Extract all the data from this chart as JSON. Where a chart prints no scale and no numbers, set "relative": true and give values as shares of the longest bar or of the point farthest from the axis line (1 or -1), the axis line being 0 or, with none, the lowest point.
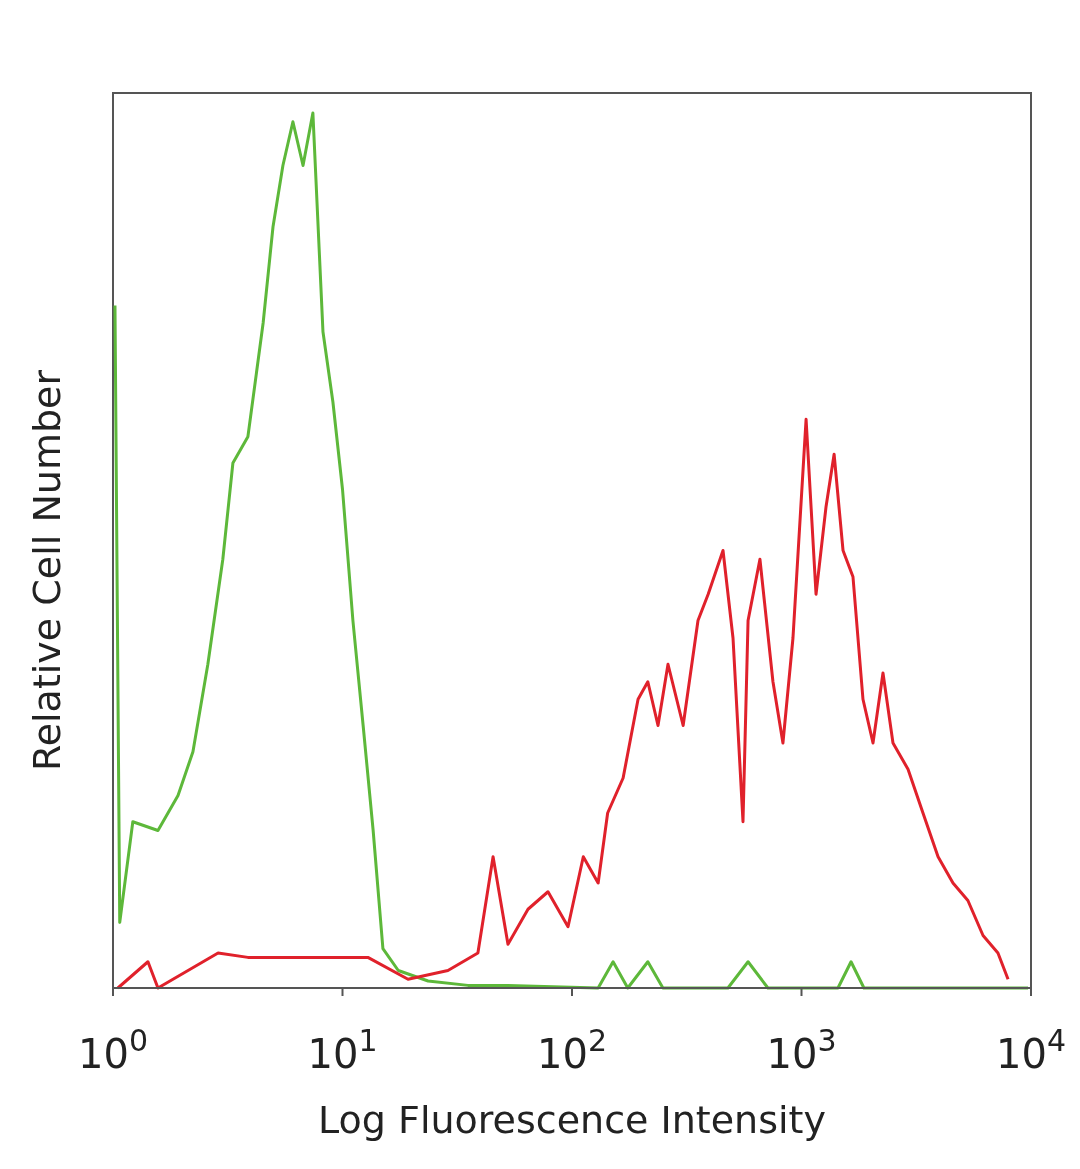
{
  "chart_data": {
    "type": "line",
    "relative": true,
    "log": "x",
    "xlabel": "Log Fluorescence Intensity",
    "ylabel": "Relative Cell Number",
    "xlim": [
      1,
      10000
    ],
    "xticks": [
      {
        "value": 1,
        "label": "10$^{0}$"
      },
      {
        "value": 10,
        "label": "10$^{1}$"
      },
      {
        "value": 100,
        "label": "10$^{2}$"
      },
      {
        "value": 1000,
        "label": "10$^{3}$"
      },
      {
        "value": 10000,
        "label": "10$^{4}$"
      }
    ],
    "grid": false,
    "series": [
      {
        "color": "#5db83a",
        "x": [
          1.02,
          1.07,
          1.22,
          1.57,
          1.92,
          2.23,
          2.59,
          3.01,
          3.33,
          3.87,
          4.51,
          4.98,
          5.5,
          6.08,
          6.73,
          7.43,
          8.22,
          9.08,
          10,
          11.1,
          12.3,
          13.6,
          15,
          17.5,
          23.6,
          35.2,
          52.6,
          130,
          151,
          175,
          214,
          249,
          478,
          585,
          714,
          1442,
          1644,
          1871,
          9705
        ],
        "values": [
          0.78,
          0.075,
          0.19,
          0.18,
          0.22,
          0.27,
          0.37,
          0.49,
          0.6,
          0.63,
          0.76,
          0.87,
          0.94,
          0.99,
          0.94,
          1,
          0.75,
          0.67,
          0.57,
          0.42,
          0.3,
          0.18,
          0.045,
          0.02,
          0.008,
          0.003,
          0.003,
          0,
          0.03,
          0,
          0.03,
          0,
          0,
          0.03,
          0,
          0,
          0.03,
          0,
          0
        ]
      },
      {
        "color": "#e0212b",
        "x": [
          1.05,
          1.42,
          1.57,
          2.87,
          3.87,
          5.79,
          8.65,
          12.9,
          19.3,
          28.8,
          38.9,
          45.3,
          52.6,
          64.3,
          78.6,
          96.1,
          112,
          130,
          143,
          167,
          194,
          214,
          237,
          262,
          305,
          354,
          392,
          455,
          503,
          556,
          585,
          659,
          751,
          830,
          918,
          1047,
          1157,
          1279,
          1387,
          1517,
          1676,
          1853,
          2049,
          2265,
          2504,
          2912,
          3383,
          3936,
          4571,
          5309,
          6180,
          7178,
          7943
        ],
        "values": [
          0,
          0.03,
          0,
          0.04,
          0.035,
          0.035,
          0.035,
          0.035,
          0.01,
          0.02,
          0.04,
          0.15,
          0.05,
          0.09,
          0.11,
          0.07,
          0.15,
          0.12,
          0.2,
          0.24,
          0.33,
          0.35,
          0.3,
          0.37,
          0.3,
          0.42,
          0.45,
          0.5,
          0.4,
          0.19,
          0.42,
          0.49,
          0.35,
          0.28,
          0.4,
          0.65,
          0.45,
          0.55,
          0.61,
          0.5,
          0.47,
          0.33,
          0.28,
          0.36,
          0.28,
          0.25,
          0.2,
          0.15,
          0.12,
          0.1,
          0.06,
          0.04,
          0.01
        ]
      }
    ]
  }
}
